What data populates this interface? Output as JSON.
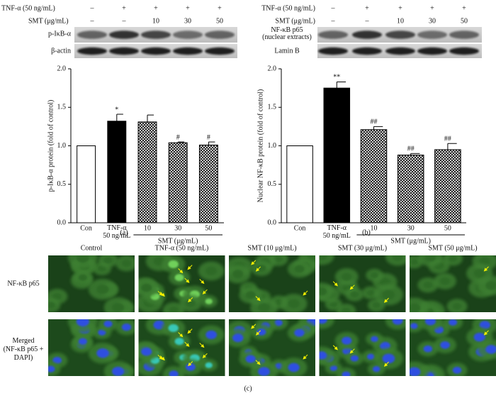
{
  "chart_data": [
    {
      "type": "bar",
      "ylabel": "p-IκB-α protein (fold of control)",
      "categories": [
        "Con",
        "TNF-α\n50 ng/mL",
        "10",
        "30",
        "50"
      ],
      "group_label": "SMT (μg/mL)",
      "values": [
        1.0,
        1.32,
        1.31,
        1.04,
        1.01
      ],
      "errors": [
        0,
        0.09,
        0.09,
        0.01,
        0.04
      ],
      "annotations": [
        null,
        "*",
        null,
        "#",
        "#"
      ],
      "bar_styles": [
        "open",
        "solid",
        "crosshatch",
        "crosshatch",
        "crosshatch"
      ],
      "ylim": [
        0,
        2
      ],
      "yticks": [
        {
          "value": 0,
          "label": "0.0"
        },
        0.5,
        {
          "value": 1,
          "label": "1.0"
        },
        1.5,
        {
          "value": 2,
          "label": "2.0"
        }
      ]
    },
    {
      "type": "bar",
      "ylabel": "Nuclear NF-κB protein (fold of control)",
      "categories": [
        "Con",
        "TNF-α\n50 ng/mL",
        "10",
        "30",
        "50"
      ],
      "group_label": "SMT (μg/mL)",
      "values": [
        1.0,
        1.75,
        1.21,
        0.88,
        0.95
      ],
      "errors": [
        0,
        0.08,
        0.04,
        0.02,
        0.08
      ],
      "annotations": [
        null,
        "**",
        "##",
        "##",
        "##"
      ],
      "bar_styles": [
        "open",
        "solid",
        "crosshatch",
        "crosshatch",
        "crosshatch"
      ],
      "ylim": [
        0,
        2
      ],
      "yticks": [
        {
          "value": 0,
          "label": "0.0"
        },
        0.5,
        {
          "value": 1,
          "label": "1.0"
        },
        1.5,
        {
          "value": 2,
          "label": "2.0"
        }
      ]
    }
  ],
  "blots": [
    {
      "treatments": [
        {
          "label": "TNF-α (50 ng/mL)",
          "values": [
            "–",
            "+",
            "+",
            "+",
            "+"
          ]
        },
        {
          "label": "SMT (μg/mL)",
          "values": [
            "–",
            "–",
            "10",
            "30",
            "50"
          ]
        }
      ],
      "rows": [
        "p-IκB-α",
        "β-actin"
      ]
    },
    {
      "treatments": [
        {
          "label": "TNF-α (50 ng/mL)",
          "values": [
            "–",
            "+",
            "+",
            "+",
            "+"
          ]
        },
        {
          "label": "SMT (μg/mL)",
          "values": [
            "–",
            "–",
            "10",
            "30",
            "50"
          ]
        }
      ],
      "rows": [
        "NF-κB p65\n(nuclear extracts)",
        "Lamin B"
      ]
    }
  ],
  "micrographs": {
    "columns": [
      "Control",
      "TNF-α (50 ng/mL)",
      "SMT (10 μg/mL)",
      "SMT (30 μg/mL)",
      "SMT (50 μg/mL)"
    ],
    "rows": [
      "NF-κB p65",
      "Merged\n(NF-κB p65 +\nDAPI)"
    ]
  },
  "panel_labels": [
    "(a)",
    "(b)",
    "(c)"
  ]
}
